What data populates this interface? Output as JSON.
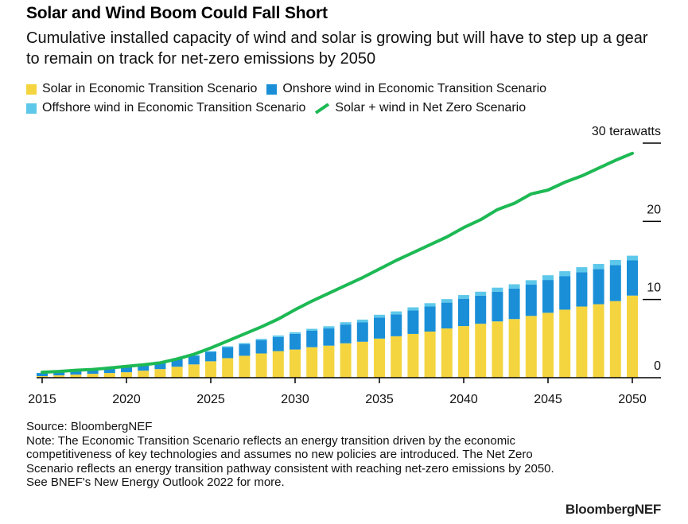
{
  "title": "Solar and Wind Boom Could Fall Short",
  "subtitle": "Cumulative installed capacity of wind and solar is growing but will have to step up a gear to remain on track for net-zero emissions by 2050",
  "legend": {
    "solar": "Solar in Economic Transition Scenario",
    "onshore": "Onshore wind in Economic Transition Scenario",
    "offshore": "Offshore wind in Economic Transition Scenario",
    "netzero": "Solar + wind in Net Zero Scenario"
  },
  "colors": {
    "solar": "#f4d53f",
    "onshore": "#1a8fd8",
    "offshore": "#5ec8ea",
    "netzero": "#1db954"
  },
  "source": "Source: BloombergNEF",
  "note": "Note: The Economic Transition Scenario reflects an energy transition driven by the economic competitiveness of key technologies and assumes no new policies are introduced. The Net Zero Scenario reflects an energy transition pathway consistent with reaching net-zero emissions by 2050. See BNEF's New Energy Outlook 2022 for more.",
  "brand": "BloombergNEF",
  "chart_data": {
    "type": "bar",
    "stacked": true,
    "x": [
      2015,
      2016,
      2017,
      2018,
      2019,
      2020,
      2021,
      2022,
      2023,
      2024,
      2025,
      2026,
      2027,
      2028,
      2029,
      2030,
      2031,
      2032,
      2033,
      2034,
      2035,
      2036,
      2037,
      2038,
      2039,
      2040,
      2041,
      2042,
      2043,
      2044,
      2045,
      2046,
      2047,
      2048,
      2049,
      2050
    ],
    "xticks": [
      2015,
      2020,
      2025,
      2030,
      2035,
      2040,
      2045,
      2050
    ],
    "yticks": [
      {
        "value": 0,
        "label": "0"
      },
      {
        "value": 10,
        "label": "10"
      },
      {
        "value": 20,
        "label": "20"
      },
      {
        "value": 30,
        "label": "30 terawatts"
      }
    ],
    "ylim": [
      0,
      30
    ],
    "series": [
      {
        "name": "Solar in Economic Transition Scenario",
        "key": "solar",
        "values": [
          0.2,
          0.3,
          0.4,
          0.5,
          0.6,
          0.7,
          0.9,
          1.1,
          1.4,
          1.7,
          2.1,
          2.5,
          2.8,
          3.1,
          3.4,
          3.6,
          3.9,
          4.1,
          4.4,
          4.6,
          5.0,
          5.3,
          5.6,
          5.9,
          6.3,
          6.6,
          6.9,
          7.2,
          7.5,
          7.9,
          8.3,
          8.7,
          9.1,
          9.4,
          9.8,
          10.5
        ]
      },
      {
        "name": "Onshore wind in Economic Transition Scenario",
        "key": "onshore",
        "values": [
          0.4,
          0.45,
          0.5,
          0.55,
          0.6,
          0.7,
          0.8,
          0.9,
          1.0,
          1.1,
          1.2,
          1.4,
          1.5,
          1.7,
          1.8,
          2.0,
          2.1,
          2.2,
          2.4,
          2.5,
          2.7,
          2.8,
          3.0,
          3.2,
          3.3,
          3.5,
          3.6,
          3.8,
          3.9,
          4.0,
          4.2,
          4.3,
          4.4,
          4.5,
          4.6,
          4.5
        ]
      },
      {
        "name": "Offshore wind in Economic Transition Scenario",
        "key": "offshore",
        "values": [
          0.01,
          0.02,
          0.02,
          0.02,
          0.03,
          0.04,
          0.05,
          0.06,
          0.07,
          0.09,
          0.1,
          0.12,
          0.14,
          0.17,
          0.2,
          0.22,
          0.25,
          0.28,
          0.3,
          0.33,
          0.35,
          0.38,
          0.4,
          0.43,
          0.45,
          0.47,
          0.5,
          0.52,
          0.55,
          0.57,
          0.6,
          0.62,
          0.63,
          0.65,
          0.65,
          0.6
        ]
      },
      {
        "name": "Solar + wind in Net Zero Scenario",
        "key": "netzero",
        "type": "line",
        "values": [
          0.7,
          0.8,
          0.95,
          1.05,
          1.25,
          1.45,
          1.65,
          1.9,
          2.4,
          3.0,
          3.8,
          4.7,
          5.6,
          6.5,
          7.5,
          8.7,
          9.8,
          10.8,
          11.8,
          12.8,
          13.9,
          15.0,
          16.0,
          17.0,
          18.0,
          19.2,
          20.2,
          21.5,
          22.3,
          23.5,
          24.0,
          25.0,
          25.8,
          26.8,
          27.8,
          28.7
        ]
      }
    ]
  }
}
